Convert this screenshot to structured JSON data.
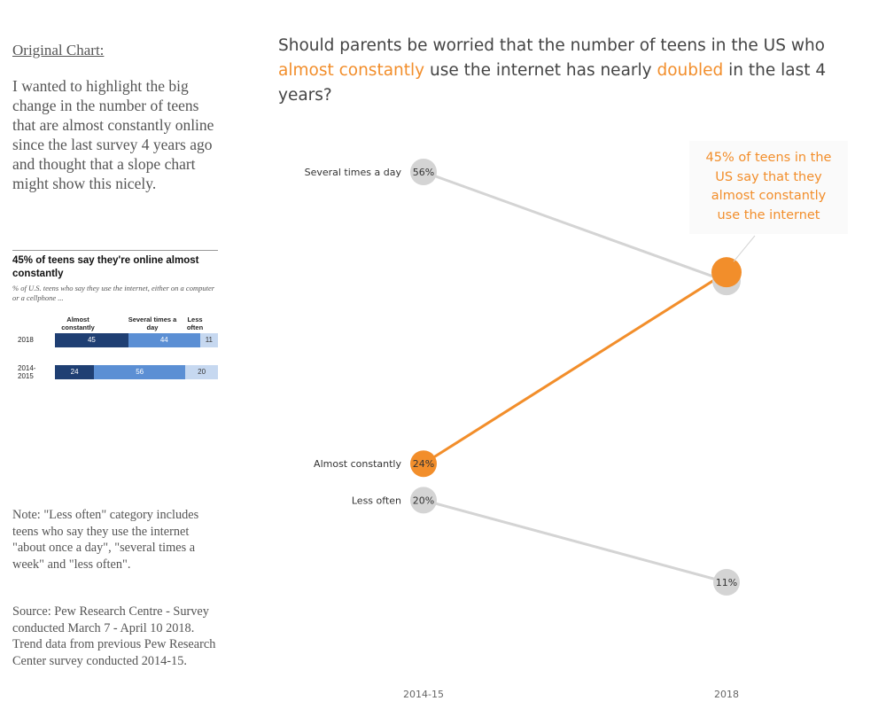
{
  "left_panel": {
    "original_heading": "Original Chart:",
    "intro": "I wanted to highlight the big change in the number of teens that are almost constantly online since the last survey 4 years ago and thought that a slope chart might show this nicely.",
    "note": "Note: \"Less often\" category includes teens who say they use the internet \"about once a day\", \"several times a week\" and \"less often\".",
    "source": "Source: Pew Research Centre - Survey conducted March 7 - April 10 2018.  Trend data from previous Pew Research Center survey conducted 2014-15."
  },
  "original_chart": {
    "title": "45% of teens say they're online almost constantly",
    "subtitle": "% of U.S. teens who say they use the internet, either on a computer or a cellphone ...",
    "columns": [
      "Almost constantly",
      "Several times a day",
      "Less often"
    ],
    "rows": [
      {
        "label": "2018",
        "values": [
          45,
          44,
          11
        ]
      },
      {
        "label": "2014-2015",
        "values": [
          24,
          56,
          20
        ]
      }
    ],
    "colors": [
      "#1f3f73",
      "#5b8fd4",
      "#c6d8f0"
    ]
  },
  "question": {
    "part1": "Should parents be worried that the number of teens in the US who ",
    "highlight1": "almost constantly",
    "part2": " use the internet has nearly ",
    "highlight2": "doubled",
    "part3": " in the last 4 years?"
  },
  "callout": {
    "text": "45% of teens in the US say that they almost constantly use the internet"
  },
  "chart_data": {
    "type": "line",
    "subtype": "slope",
    "x": [
      "2014-15",
      "2018"
    ],
    "ylim": [
      0,
      60
    ],
    "series": [
      {
        "name": "Several times a day",
        "values": [
          56,
          44
        ],
        "labels": [
          "56%",
          ""
        ],
        "color": "#d4d4d4",
        "highlight": false
      },
      {
        "name": "Almost constantly",
        "values": [
          24,
          45
        ],
        "labels": [
          "24%",
          ""
        ],
        "color": "#f28e2b",
        "highlight": true
      },
      {
        "name": "Less often",
        "values": [
          20,
          11
        ],
        "labels": [
          "20%",
          "11%"
        ],
        "color": "#d4d4d4",
        "highlight": false
      }
    ],
    "accent_color": "#f28e2b",
    "muted_color": "#d4d4d4"
  }
}
